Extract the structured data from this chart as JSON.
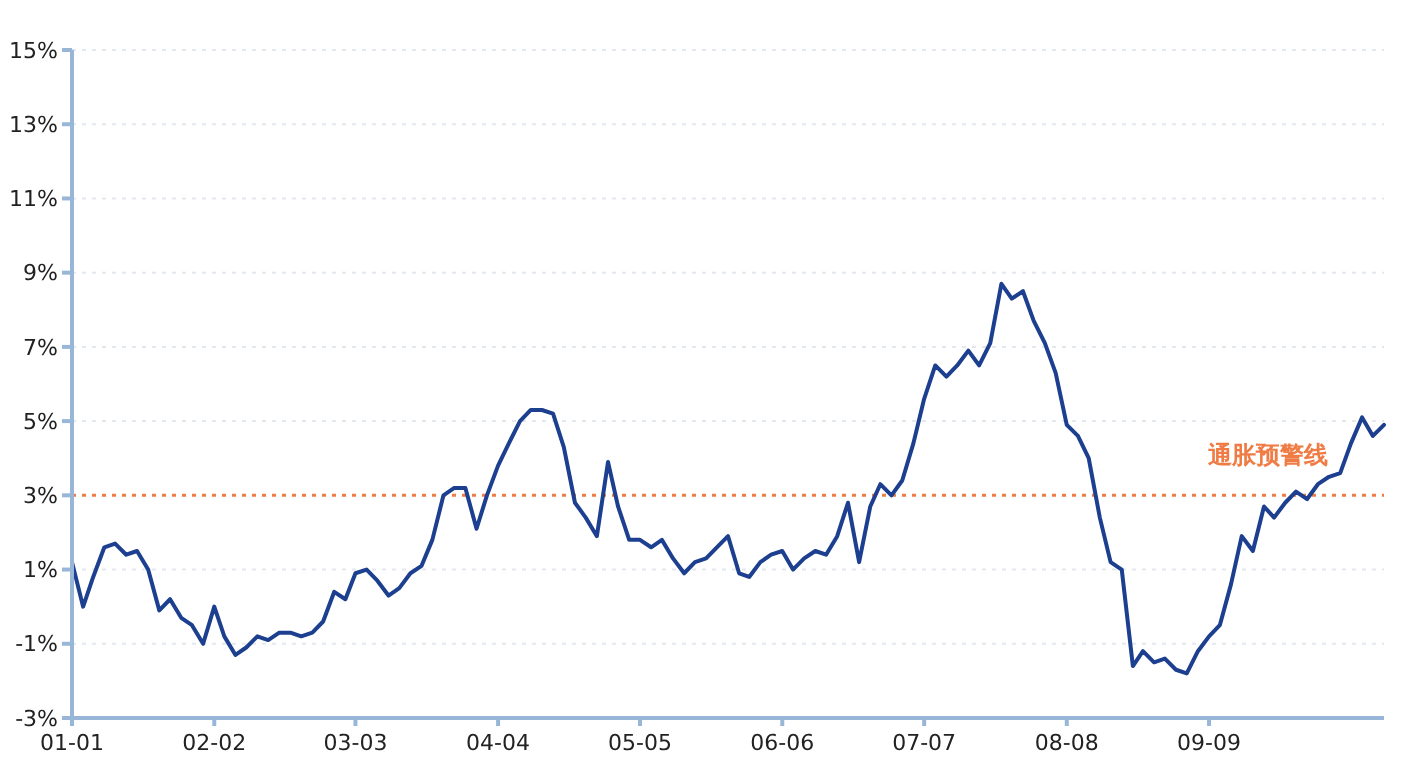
{
  "chart_data": {
    "type": "line",
    "x": [
      "2001-01",
      "2001-02",
      "2001-03",
      "2001-04",
      "2001-05",
      "2001-06",
      "2001-07",
      "2001-08",
      "2001-09",
      "2001-10",
      "2001-11",
      "2001-12",
      "2002-01",
      "2002-02",
      "2002-03",
      "2002-04",
      "2002-05",
      "2002-06",
      "2002-07",
      "2002-08",
      "2002-09",
      "2002-10",
      "2002-11",
      "2002-12",
      "2003-01",
      "2003-02",
      "2003-03",
      "2003-04",
      "2003-05",
      "2003-06",
      "2003-07",
      "2003-08",
      "2003-09",
      "2003-10",
      "2003-11",
      "2003-12",
      "2004-01",
      "2004-02",
      "2004-03",
      "2004-04",
      "2004-05",
      "2004-06",
      "2004-07",
      "2004-08",
      "2004-09",
      "2004-10",
      "2004-11",
      "2004-12",
      "2005-01",
      "2005-02",
      "2005-03",
      "2005-04",
      "2005-05",
      "2005-06",
      "2005-07",
      "2005-08",
      "2005-09",
      "2005-10",
      "2005-11",
      "2005-12",
      "2006-01",
      "2006-02",
      "2006-03",
      "2006-04",
      "2006-05",
      "2006-06",
      "2006-07",
      "2006-08",
      "2006-09",
      "2006-10",
      "2006-11",
      "2006-12",
      "2007-01",
      "2007-02",
      "2007-03",
      "2007-04",
      "2007-05",
      "2007-06",
      "2007-07",
      "2007-08",
      "2007-09",
      "2007-10",
      "2007-11",
      "2007-12",
      "2008-01",
      "2008-02",
      "2008-03",
      "2008-04",
      "2008-05",
      "2008-06",
      "2008-07",
      "2008-08",
      "2008-09",
      "2008-10",
      "2008-11",
      "2008-12",
      "2009-01",
      "2009-02",
      "2009-03",
      "2009-04",
      "2009-05",
      "2009-06",
      "2009-07",
      "2009-08",
      "2009-09",
      "2009-10",
      "2009-11",
      "2009-12",
      "2010-01",
      "2010-02",
      "2010-03",
      "2010-04",
      "2010-05",
      "2010-06",
      "2010-07",
      "2010-08",
      "2010-09",
      "2010-10",
      "2010-11",
      "2010-12",
      "2011-01"
    ],
    "series": [
      {
        "color": "#1d3f8f",
        "values": [
          1.2,
          0.0,
          0.8,
          1.6,
          1.7,
          1.4,
          1.5,
          1.0,
          -0.1,
          0.2,
          -0.3,
          -0.5,
          -1.0,
          0.0,
          -0.8,
          -1.3,
          -1.1,
          -0.8,
          -0.9,
          -0.7,
          -0.7,
          -0.8,
          -0.7,
          -0.4,
          0.4,
          0.2,
          0.9,
          1.0,
          0.7,
          0.3,
          0.5,
          0.9,
          1.1,
          1.8,
          3.0,
          3.2,
          3.2,
          2.1,
          3.0,
          3.8,
          4.4,
          5.0,
          5.3,
          5.3,
          5.2,
          4.3,
          2.8,
          2.4,
          1.9,
          3.9,
          2.7,
          1.8,
          1.8,
          1.6,
          1.8,
          1.3,
          0.9,
          1.2,
          1.3,
          1.6,
          1.9,
          0.9,
          0.8,
          1.2,
          1.4,
          1.5,
          1.0,
          1.3,
          1.5,
          1.4,
          1.9,
          2.8,
          1.2,
          2.7,
          3.3,
          3.0,
          3.4,
          4.4,
          5.6,
          6.5,
          6.2,
          6.5,
          6.9,
          6.5,
          7.1,
          8.7,
          8.3,
          8.5,
          7.7,
          7.1,
          6.3,
          4.9,
          4.6,
          4.0,
          2.4,
          1.2,
          1.0,
          -1.6,
          -1.2,
          -1.5,
          -1.4,
          -1.7,
          -1.8,
          -1.2,
          -0.8,
          -0.5,
          0.6,
          1.9,
          1.5,
          2.7,
          2.4,
          2.8,
          3.1,
          2.9,
          3.3,
          3.5,
          3.6,
          4.4,
          5.1,
          4.6,
          4.9
        ]
      }
    ],
    "xlim": [
      "2001-01",
      "2011-01"
    ],
    "xticks": [
      {
        "value": "2001-01",
        "label": "01-01"
      },
      {
        "value": "2002-02",
        "label": "02-02"
      },
      {
        "value": "2003-03",
        "label": "03-03"
      },
      {
        "value": "2004-04",
        "label": "04-04"
      },
      {
        "value": "2005-05",
        "label": "05-05"
      },
      {
        "value": "2006-06",
        "label": "06-06"
      },
      {
        "value": "2007-07",
        "label": "07-07"
      },
      {
        "value": "2008-08",
        "label": "08-08"
      },
      {
        "value": "2009-09",
        "label": "09-09"
      }
    ],
    "ylim": [
      -3,
      15
    ],
    "yticks": [
      {
        "value": -3,
        "label": "-3%"
      },
      {
        "value": -1,
        "label": "-1%"
      },
      {
        "value": 1,
        "label": "1%"
      },
      {
        "value": 3,
        "label": "3%"
      },
      {
        "value": 5,
        "label": "5%"
      },
      {
        "value": 7,
        "label": "7%"
      },
      {
        "value": 9,
        "label": "9%"
      },
      {
        "value": 11,
        "label": "11%"
      },
      {
        "value": 13,
        "label": "13%"
      },
      {
        "value": 15,
        "label": "15%"
      }
    ],
    "grid": "y",
    "marker": "none",
    "line_style": "solid",
    "ref_lines": [
      {
        "axis": "y",
        "value": 3,
        "label": "通胀预警线",
        "color": "#f07c45",
        "line_style": "dotted"
      }
    ]
  }
}
